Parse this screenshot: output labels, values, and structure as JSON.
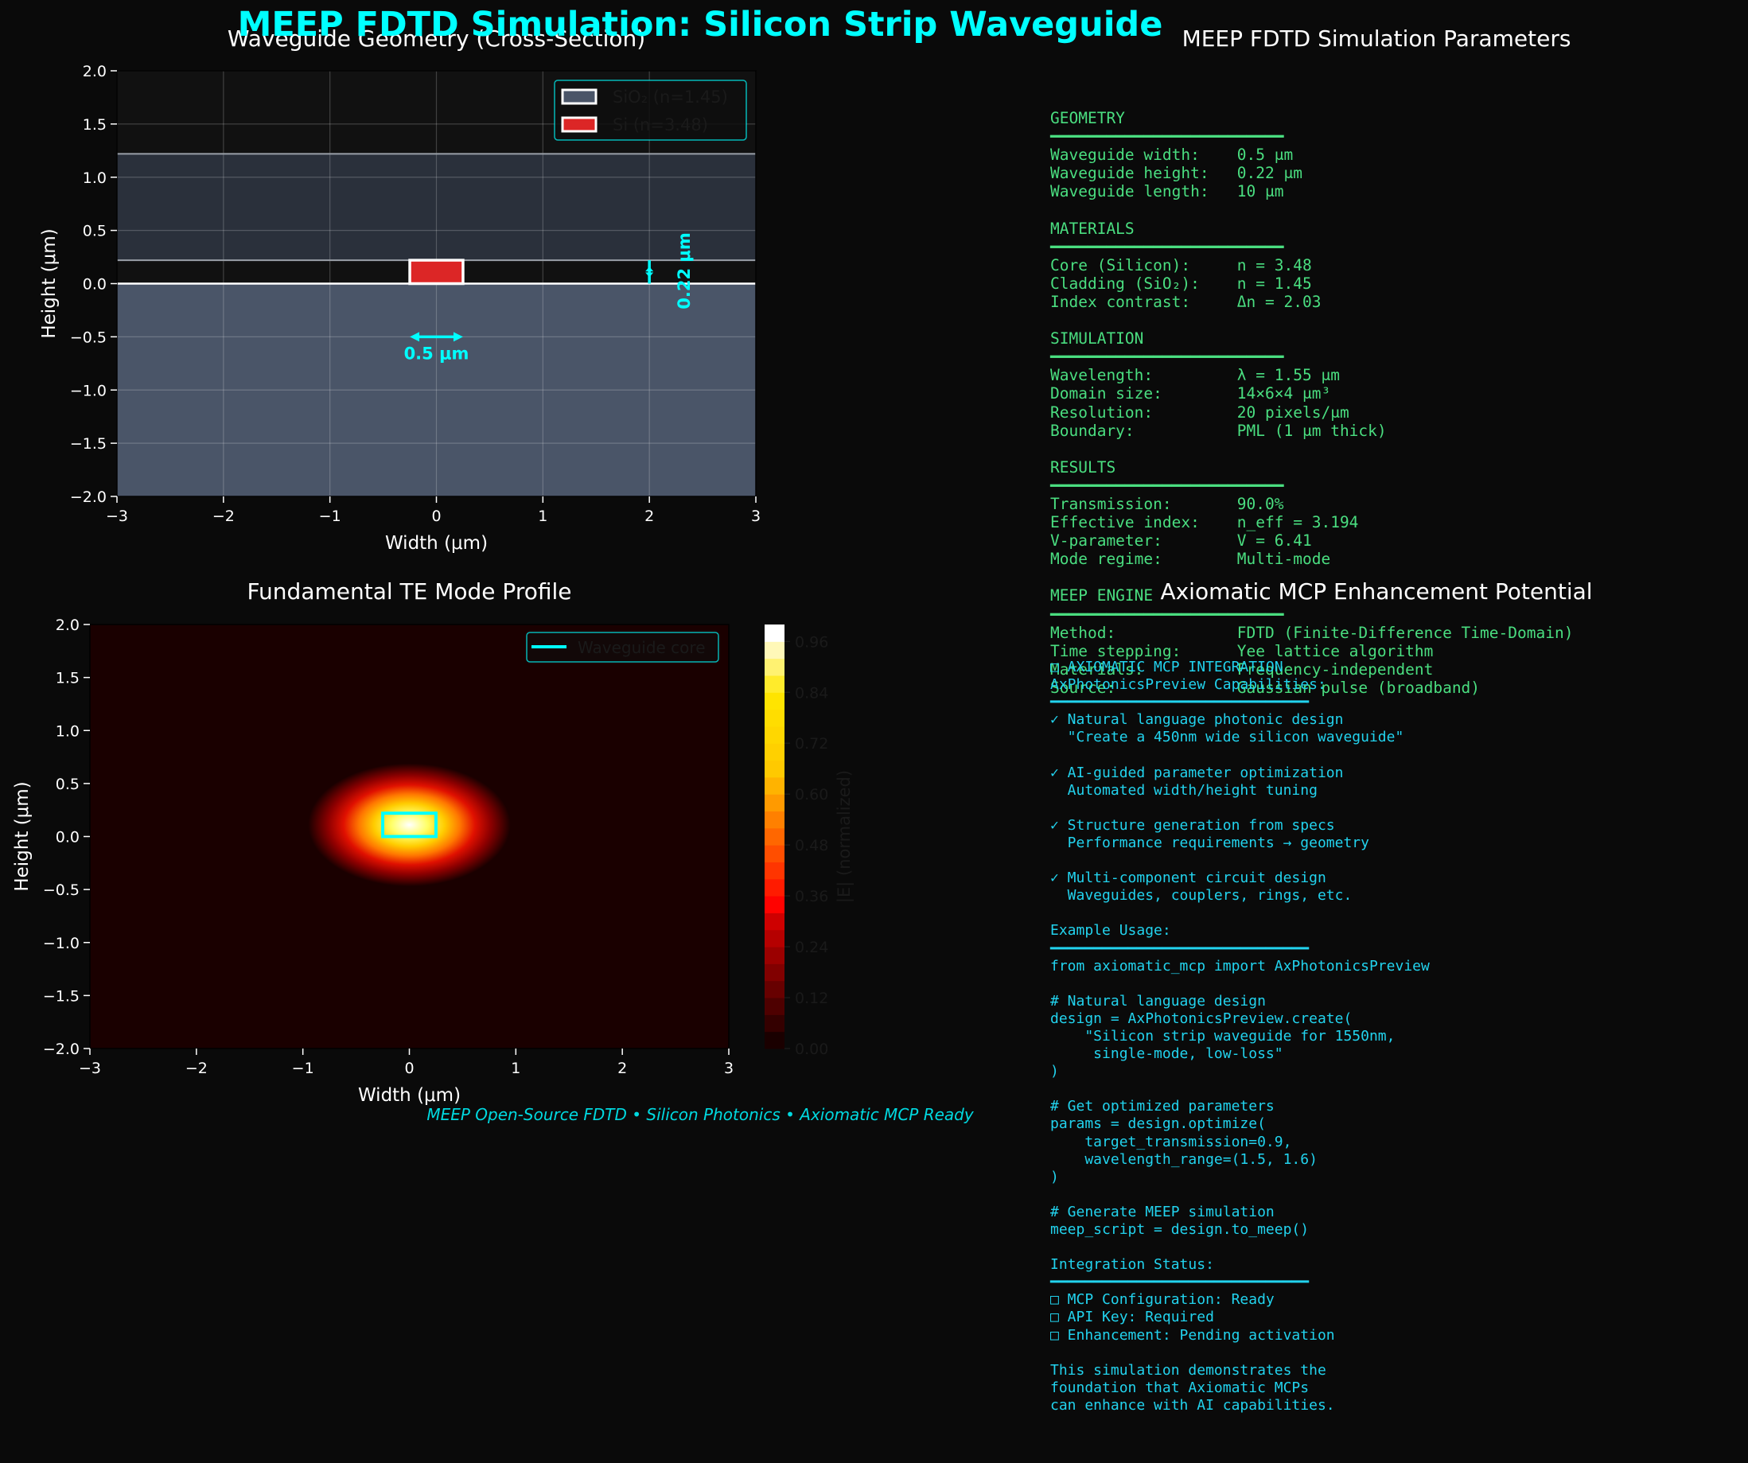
{
  "title": "MEEP FDTD Simulation: Silicon Strip Waveguide",
  "footer": "MEEP Open-Source FDTD • Silicon Photonics • Axiomatic MCP Ready",
  "colors": {
    "accent": "#00ffff",
    "params_text": "#4ade80",
    "mcp_text": "#22d3ee",
    "sio2": "#4a5568",
    "si": "#dc2626",
    "bg": "#0a0a0a"
  },
  "chart_data": [
    {
      "type": "area",
      "title": "Waveguide Geometry (Cross-Section)",
      "xlabel": "Width (μm)",
      "ylabel": "Height (μm)",
      "xlim": [
        -3,
        3
      ],
      "ylim": [
        -2,
        2
      ],
      "xticks": [
        "−3",
        "−2",
        "−1",
        "0",
        "1",
        "2",
        "3"
      ],
      "yticks": [
        "−2.0",
        "−1.5",
        "−1.0",
        "−0.5",
        "0.0",
        "0.5",
        "1.0",
        "1.5",
        "2.0"
      ],
      "grid": true,
      "legend_position": "top-right",
      "legend": [
        {
          "label": "SiO₂ (n=1.45)",
          "color": "#4a5568"
        },
        {
          "label": "Si (n=3.48)",
          "color": "#dc2626"
        }
      ],
      "regions": [
        {
          "name": "substrate",
          "x": [
            -3,
            3
          ],
          "y": [
            -2,
            0
          ]
        },
        {
          "name": "cladding",
          "x": [
            -3,
            3
          ],
          "y": [
            0.22,
            1.22
          ]
        },
        {
          "name": "core",
          "x": [
            -0.25,
            0.25
          ],
          "y": [
            0,
            0.22
          ]
        }
      ],
      "annotations": {
        "width": "0.5 μm",
        "height": "0.22 μm"
      }
    },
    {
      "type": "heatmap",
      "title": "Fundamental TE Mode Profile",
      "xlabel": "Width (μm)",
      "ylabel": "Height (μm)",
      "xlim": [
        -3,
        3
      ],
      "ylim": [
        -2,
        2
      ],
      "xticks": [
        "−3",
        "−2",
        "−1",
        "0",
        "1",
        "2",
        "3"
      ],
      "yticks": [
        "−2.0",
        "−1.5",
        "−1.0",
        "−0.5",
        "0.0",
        "0.5",
        "1.0",
        "1.5",
        "2.0"
      ],
      "mode_center": [
        0,
        0.11
      ],
      "colorbar_label": "|E| (normalized)",
      "colorbar_ticks": [
        "0.00",
        "0.12",
        "0.24",
        "0.36",
        "0.48",
        "0.60",
        "0.72",
        "0.84",
        "0.96"
      ],
      "colorbar_range": [
        0,
        1
      ],
      "legend_position": "top-right",
      "legend": [
        {
          "label": "Waveguide core",
          "color": "#00ffff"
        }
      ],
      "core": {
        "x": [
          -0.25,
          0.25
        ],
        "y": [
          0,
          0.22
        ]
      }
    }
  ],
  "params_panel": {
    "title": "MEEP FDTD Simulation Parameters",
    "text": "GEOMETRY\n━━━━━━━━━━━━━━━━━━━━━━━━━\nWaveguide width:    0.5 μm\nWaveguide height:   0.22 μm\nWaveguide length:   10 μm\n\nMATERIALS\n━━━━━━━━━━━━━━━━━━━━━━━━━\nCore (Silicon):     n = 3.48\nCladding (SiO₂):    n = 1.45\nIndex contrast:     Δn = 2.03\n\nSIMULATION\n━━━━━━━━━━━━━━━━━━━━━━━━━\nWavelength:         λ = 1.55 μm\nDomain size:        14×6×4 μm³\nResolution:         20 pixels/μm\nBoundary:           PML (1 μm thick)\n\nRESULTS\n━━━━━━━━━━━━━━━━━━━━━━━━━\nTransmission:       90.0%\nEffective index:    n_eff = 3.194\nV-parameter:        V = 6.41\nMode regime:        Multi-mode\n\nMEEP ENGINE\n━━━━━━━━━━━━━━━━━━━━━━━━━\nMethod:             FDTD (Finite-Difference Time-Domain)\nTime stepping:      Yee lattice algorithm\nMaterials:          Frequency-independent\nSource:             Gaussian pulse (broadband)"
  },
  "mcp_panel": {
    "title": "Axiomatic MCP Enhancement Potential",
    "text": "□ AXIOMATIC MCP INTEGRATION\nAxPhotonicsPreview Capabilities:\n━━━━━━━━━━━━━━━━━━━━━━━━━━━━━━\n✓ Natural language photonic design\n  \"Create a 450nm wide silicon waveguide\"\n\n✓ AI-guided parameter optimization\n  Automated width/height tuning\n\n✓ Structure generation from specs\n  Performance requirements → geometry\n\n✓ Multi-component circuit design\n  Waveguides, couplers, rings, etc.\n\nExample Usage:\n━━━━━━━━━━━━━━━━━━━━━━━━━━━━━━\nfrom axiomatic_mcp import AxPhotonicsPreview\n\n# Natural language design\ndesign = AxPhotonicsPreview.create(\n    \"Silicon strip waveguide for 1550nm,\n     single-mode, low-loss\"\n)\n\n# Get optimized parameters\nparams = design.optimize(\n    target_transmission=0.9,\n    wavelength_range=(1.5, 1.6)\n)\n\n# Generate MEEP simulation\nmeep_script = design.to_meep()\n\nIntegration Status:\n━━━━━━━━━━━━━━━━━━━━━━━━━━━━━━\n□ MCP Configuration: Ready\n□ API Key: Required\n□ Enhancement: Pending activation\n\nThis simulation demonstrates the\nfoundation that Axiomatic MCPs\ncan enhance with AI capabilities."
  }
}
